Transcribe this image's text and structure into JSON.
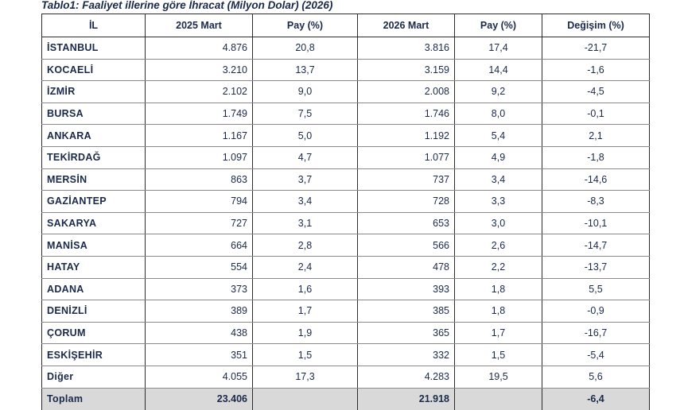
{
  "caption": "Tablo1: Faaliyet illerine göre İhracat (Milyon Dolar) (2026)",
  "headers": {
    "province": "İL",
    "y2025": "2025 Mart",
    "share2025": "Pay  (%)",
    "y2026": "2026 Mart",
    "share2026": "Pay  (%)",
    "change": "Değişim (%)"
  },
  "rows": [
    {
      "il": "İSTANBUL",
      "v2025": "4.876",
      "p2025": "20,8",
      "v2026": "3.816",
      "p2026": "17,4",
      "chg": "-21,7"
    },
    {
      "il": "KOCAELİ",
      "v2025": "3.210",
      "p2025": "13,7",
      "v2026": "3.159",
      "p2026": "14,4",
      "chg": "-1,6"
    },
    {
      "il": "İZMİR",
      "v2025": "2.102",
      "p2025": "9,0",
      "v2026": "2.008",
      "p2026": "9,2",
      "chg": "-4,5"
    },
    {
      "il": "BURSA",
      "v2025": "1.749",
      "p2025": "7,5",
      "v2026": "1.746",
      "p2026": "8,0",
      "chg": "-0,1"
    },
    {
      "il": "ANKARA",
      "v2025": "1.167",
      "p2025": "5,0",
      "v2026": "1.192",
      "p2026": "5,4",
      "chg": "2,1"
    },
    {
      "il": "TEKİRDAĞ",
      "v2025": "1.097",
      "p2025": "4,7",
      "v2026": "1.077",
      "p2026": "4,9",
      "chg": "-1,8"
    },
    {
      "il": "MERSİN",
      "v2025": "863",
      "p2025": "3,7",
      "v2026": "737",
      "p2026": "3,4",
      "chg": "-14,6"
    },
    {
      "il": "GAZİANTEP",
      "v2025": "794",
      "p2025": "3,4",
      "v2026": "728",
      "p2026": "3,3",
      "chg": "-8,3"
    },
    {
      "il": "SAKARYA",
      "v2025": "727",
      "p2025": "3,1",
      "v2026": "653",
      "p2026": "3,0",
      "chg": "-10,1"
    },
    {
      "il": "MANİSA",
      "v2025": "664",
      "p2025": "2,8",
      "v2026": "566",
      "p2026": "2,6",
      "chg": "-14,7"
    },
    {
      "il": "HATAY",
      "v2025": "554",
      "p2025": "2,4",
      "v2026": "478",
      "p2026": "2,2",
      "chg": "-13,7"
    },
    {
      "il": "ADANA",
      "v2025": "373",
      "p2025": "1,6",
      "v2026": "393",
      "p2026": "1,8",
      "chg": "5,5"
    },
    {
      "il": "DENİZLİ",
      "v2025": "389",
      "p2025": "1,7",
      "v2026": "385",
      "p2026": "1,8",
      "chg": "-0,9"
    },
    {
      "il": "ÇORUM",
      "v2025": "438",
      "p2025": "1,9",
      "v2026": "365",
      "p2026": "1,7",
      "chg": "-16,7"
    },
    {
      "il": "ESKİŞEHİR",
      "v2025": "351",
      "p2025": "1,5",
      "v2026": "332",
      "p2026": "1,5",
      "chg": "-5,4"
    },
    {
      "il": "Diğer",
      "v2025": "4.055",
      "p2025": "17,3",
      "v2026": "4.283",
      "p2026": "19,5",
      "chg": "5,6"
    }
  ],
  "total": {
    "il": "Toplam",
    "v2025": "23.406",
    "p2025": "",
    "v2026": "21.918",
    "p2026": "",
    "chg": "-6,4"
  }
}
